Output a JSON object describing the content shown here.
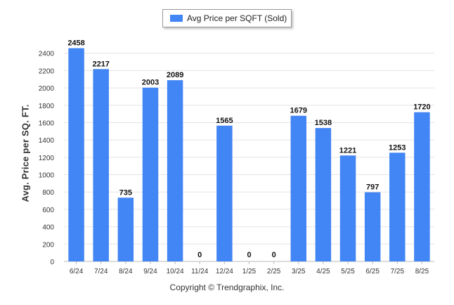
{
  "chart_data": {
    "type": "bar",
    "legend": {
      "label": "Avg Price per SQFT (Sold)",
      "placement": "top-center"
    },
    "ylabel": "Avg. Price per SQ. FT.",
    "xlabel": "",
    "categories": [
      "6/24",
      "7/24",
      "8/24",
      "9/24",
      "10/24",
      "11/24",
      "12/24",
      "1/25",
      "2/25",
      "3/25",
      "4/25",
      "5/25",
      "6/25",
      "7/25",
      "8/25"
    ],
    "values": [
      2458,
      2217,
      735,
      2003,
      2089,
      0,
      1565,
      0,
      0,
      1679,
      1538,
      1221,
      797,
      1253,
      1720
    ],
    "ylim": [
      0,
      2600
    ],
    "yticks": [
      0,
      200,
      400,
      600,
      800,
      1000,
      1200,
      1400,
      1600,
      1800,
      2000,
      2200,
      2400
    ],
    "grid": true,
    "bar_color": "#4285f4"
  },
  "footer": {
    "copyright": "Copyright © Trendgraphix, Inc."
  }
}
